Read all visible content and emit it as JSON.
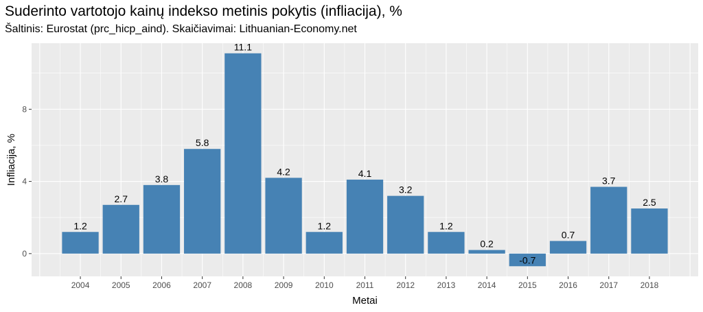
{
  "chart_data": {
    "type": "bar",
    "title": "Suderinto vartotojo kainų indekso metinis pokytis (infliacija), %",
    "subtitle": "Šaltinis: Eurostat (prc_hicp_aind). Skaičiavimai: Lithuanian-Economy.net",
    "xlabel": "Metai",
    "ylabel": "Infliacija, %",
    "categories": [
      "2004",
      "2005",
      "2006",
      "2007",
      "2008",
      "2009",
      "2010",
      "2011",
      "2012",
      "2013",
      "2014",
      "2015",
      "2016",
      "2017",
      "2018"
    ],
    "values": [
      1.2,
      2.7,
      3.8,
      5.8,
      11.1,
      4.2,
      1.2,
      4.1,
      3.2,
      1.2,
      0.2,
      -0.7,
      0.7,
      3.7,
      2.5
    ],
    "value_labels": [
      "1.2",
      "2.7",
      "3.8",
      "5.8",
      "11.1",
      "4.2",
      "1.2",
      "4.1",
      "3.2",
      "1.2",
      "0.2",
      "-0.7",
      "0.7",
      "3.7",
      "2.5"
    ],
    "yticks": [
      0,
      4,
      8
    ],
    "ytick_labels": [
      "0",
      "4",
      "8"
    ],
    "ylim": [
      -1.26,
      11.66
    ],
    "bar_color": "#4682b4",
    "panel_color": "#ebebeb",
    "grid": true,
    "legend": "none"
  }
}
